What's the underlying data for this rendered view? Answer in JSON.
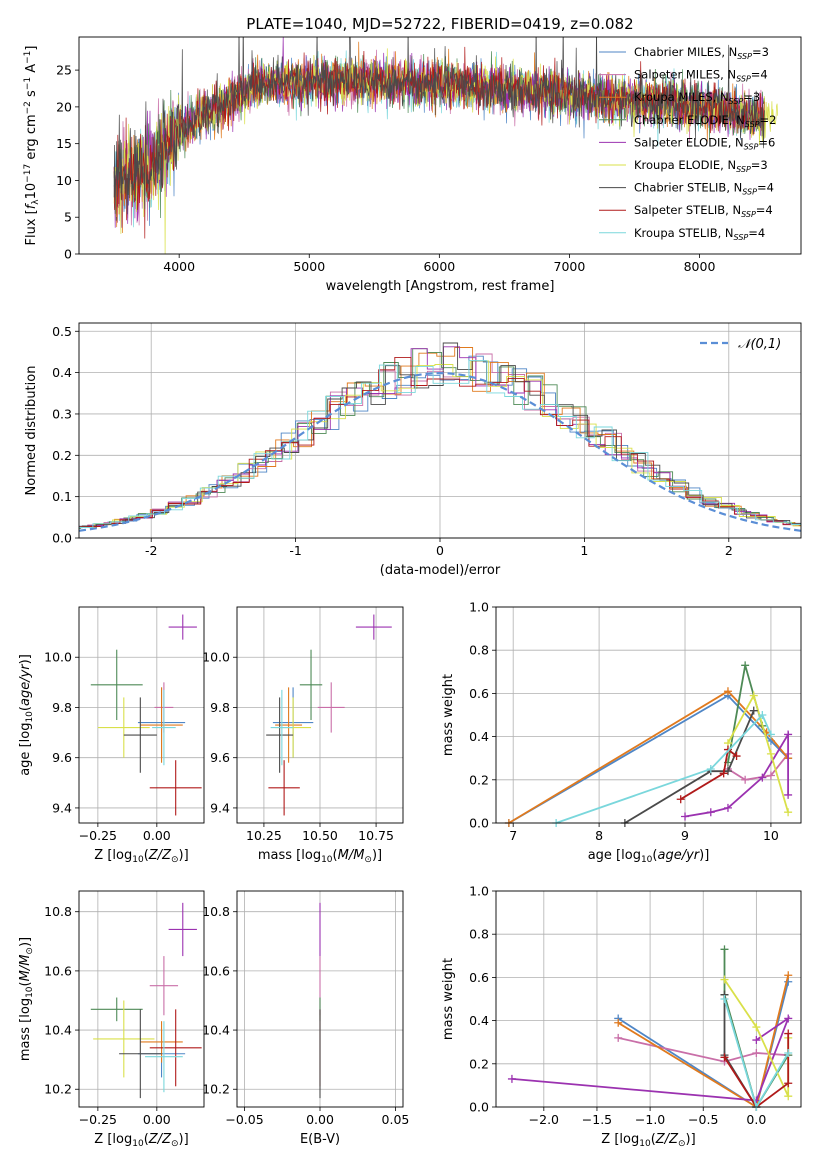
{
  "series_names": [
    "Chabrier MILES, N_SSP=3",
    "Salpeter MILES, N_SSP=4",
    "Kroupa MILES, N_SSP=3",
    "Chabrier ELODIE, N_SSP=2",
    "Salpeter ELODIE, N_SSP=6",
    "Kroupa ELODIE, N_SSP=3",
    "Chabrier STELIB, N_SSP=4",
    "Salpeter STELIB, N_SSP=4",
    "Kroupa STELIB, N_SSP=4"
  ],
  "series_colors": [
    "#4f86c6",
    "#c96fa8",
    "#e07a1e",
    "#4e8a56",
    "#9b32b0",
    "#d9e04a",
    "#4a4a4a",
    "#b01a1a",
    "#7ad7dc"
  ],
  "chart_data": [
    {
      "type": "line",
      "title": "PLATE=1040, MJD=52722, FIBERID=0419, z=0.082",
      "xlabel": "wavelength [Angstrom, rest frame]",
      "ylabel": "Flux [f_λ 10^-17 erg cm^-2 s^-1 A^-1]",
      "xlim": [
        3230,
        8780
      ],
      "ylim": [
        0,
        29.5
      ],
      "xticks": [
        4000,
        5000,
        6000,
        7000,
        8000
      ],
      "yticks": [
        0,
        5,
        10,
        15,
        20,
        25
      ],
      "legend_position": "upper-right",
      "approx_continuum": {
        "x": [
          3500,
          3800,
          4000,
          4300,
          4600,
          5000,
          5500,
          6000,
          6500,
          7000,
          7400,
          7800,
          8200,
          8500
        ],
        "y": [
          10,
          12,
          17,
          20,
          23,
          23.5,
          23.5,
          23,
          22.5,
          21.5,
          21,
          20.5,
          19.5,
          18.5
        ]
      }
    },
    {
      "type": "line",
      "xlabel": "(data-model)/error",
      "ylabel": "Normed distribution",
      "xlim": [
        -2.5,
        2.5
      ],
      "ylim": [
        0,
        0.52
      ],
      "xticks": [
        -2,
        -1,
        0,
        1,
        2
      ],
      "yticks": [
        0.0,
        0.1,
        0.2,
        0.3,
        0.4,
        0.5
      ],
      "legend": "𝒩(0,1)",
      "legend_position": "upper-right",
      "reference": "standard normal density"
    },
    {
      "type": "scatter",
      "xlabel": "Z [log10(Z/Z⊙)]",
      "ylabel": "age [log10(age/yr)]",
      "xlim": [
        -0.33,
        0.2
      ],
      "ylim": [
        9.34,
        10.2
      ],
      "xticks": [
        -0.25,
        0.0
      ],
      "yticks": [
        9.4,
        9.6,
        9.8,
        10.0
      ],
      "points": [
        {
          "series": 0,
          "x": 0.02,
          "xerr": 0.1,
          "y": 9.74,
          "yerr": 0.14
        },
        {
          "series": 1,
          "x": 0.03,
          "xerr": 0.04,
          "y": 9.8,
          "yerr": 0.1
        },
        {
          "series": 2,
          "x": 0.02,
          "xerr": 0.09,
          "y": 9.73,
          "yerr": 0.15
        },
        {
          "series": 3,
          "x": -0.17,
          "xerr": 0.11,
          "y": 9.89,
          "yerr": 0.14
        },
        {
          "series": 4,
          "x": 0.11,
          "xerr": 0.06,
          "y": 10.12,
          "yerr": 0.05
        },
        {
          "series": 5,
          "x": -0.14,
          "xerr": 0.11,
          "y": 9.72,
          "yerr": 0.12
        },
        {
          "series": 6,
          "x": -0.07,
          "xerr": 0.07,
          "y": 9.69,
          "yerr": 0.15
        },
        {
          "series": 7,
          "x": 0.08,
          "xerr": 0.11,
          "y": 9.48,
          "yerr": 0.11
        },
        {
          "series": 8,
          "x": 0.03,
          "xerr": 0.05,
          "y": 9.72,
          "yerr": 0.15
        }
      ]
    },
    {
      "type": "scatter",
      "xlabel": "mass [log10(M/M⊙)]",
      "xlim": [
        10.13,
        10.87
      ],
      "ylim": [
        9.34,
        10.2
      ],
      "xticks": [
        10.25,
        10.5,
        10.75
      ],
      "yticks": [
        9.4,
        9.6,
        9.8,
        10.0
      ],
      "points": [
        {
          "series": 0,
          "x": 10.38,
          "xerr": 0.09,
          "y": 9.74,
          "yerr": 0.14
        },
        {
          "series": 1,
          "x": 10.55,
          "xerr": 0.06,
          "y": 9.8,
          "yerr": 0.1
        },
        {
          "series": 2,
          "x": 10.36,
          "xerr": 0.06,
          "y": 9.73,
          "yerr": 0.15
        },
        {
          "series": 3,
          "x": 10.46,
          "xerr": 0.05,
          "y": 9.89,
          "yerr": 0.14
        },
        {
          "series": 4,
          "x": 10.74,
          "xerr": 0.08,
          "y": 10.12,
          "yerr": 0.05
        },
        {
          "series": 5,
          "x": 10.38,
          "xerr": 0.08,
          "y": 9.72,
          "yerr": 0.12
        },
        {
          "series": 6,
          "x": 10.32,
          "xerr": 0.06,
          "y": 9.69,
          "yerr": 0.15
        },
        {
          "series": 7,
          "x": 10.34,
          "xerr": 0.07,
          "y": 9.48,
          "yerr": 0.11
        },
        {
          "series": 8,
          "x": 10.33,
          "xerr": 0.05,
          "y": 9.72,
          "yerr": 0.15
        }
      ]
    },
    {
      "type": "line",
      "xlabel": "age [log10(age/yr)]",
      "ylabel": "mass weight",
      "xlim": [
        6.8,
        10.35
      ],
      "ylim": [
        0,
        1
      ],
      "xticks": [
        7,
        8,
        9,
        10
      ],
      "yticks": [
        0.0,
        0.2,
        0.4,
        0.6,
        0.8,
        1.0
      ],
      "series": [
        {
          "series": 0,
          "x": [
            6.95,
            9.5,
            10.0,
            10.2
          ],
          "y": [
            0.0,
            0.59,
            0.38,
            0.3
          ]
        },
        {
          "series": 1,
          "x": [
            9.5,
            9.7,
            10.0,
            10.2
          ],
          "y": [
            0.25,
            0.2,
            0.22,
            0.32
          ]
        },
        {
          "series": 2,
          "x": [
            6.95,
            9.5,
            9.95,
            10.2
          ],
          "y": [
            0.0,
            0.61,
            0.42,
            0.3
          ]
        },
        {
          "series": 3,
          "x": [
            9.5,
            9.7,
            9.9
          ],
          "y": [
            0.28,
            0.73,
            0.45
          ]
        },
        {
          "series": 4,
          "x": [
            9.0,
            9.3,
            9.5,
            9.9,
            10.2,
            10.2
          ],
          "y": [
            0.03,
            0.05,
            0.07,
            0.21,
            0.41,
            0.13
          ]
        },
        {
          "series": 5,
          "x": [
            9.5,
            9.8,
            10.0,
            10.2
          ],
          "y": [
            0.37,
            0.59,
            0.32,
            0.05
          ]
        },
        {
          "series": 6,
          "x": [
            8.3,
            9.3,
            9.5,
            9.8
          ],
          "y": [
            0.0,
            0.24,
            0.24,
            0.52
          ]
        },
        {
          "series": 7,
          "x": [
            8.95,
            9.45,
            9.5,
            9.6
          ],
          "y": [
            0.11,
            0.23,
            0.34,
            0.31
          ]
        },
        {
          "series": 8,
          "x": [
            7.5,
            9.3,
            9.9,
            10.0
          ],
          "y": [
            0.0,
            0.25,
            0.5,
            0.41
          ]
        }
      ]
    },
    {
      "type": "scatter",
      "xlabel": "Z [log10(Z/Z⊙)]",
      "ylabel": "mass [log10(M/M⊙)]",
      "xlim": [
        -0.33,
        0.2
      ],
      "ylim": [
        10.14,
        10.87
      ],
      "xticks": [
        -0.25,
        0.0
      ],
      "yticks": [
        10.2,
        10.4,
        10.6,
        10.8
      ],
      "points": [
        {
          "series": 0,
          "x": 0.02,
          "xerr": 0.1,
          "y": 10.32,
          "yerr": 0.08
        },
        {
          "series": 1,
          "x": 0.03,
          "xerr": 0.06,
          "y": 10.55,
          "yerr": 0.1
        },
        {
          "series": 2,
          "x": 0.02,
          "xerr": 0.09,
          "y": 10.36,
          "yerr": 0.07
        },
        {
          "series": 3,
          "x": -0.17,
          "xerr": 0.11,
          "y": 10.47,
          "yerr": 0.04
        },
        {
          "series": 4,
          "x": 0.11,
          "xerr": 0.06,
          "y": 10.74,
          "yerr": 0.09
        },
        {
          "series": 5,
          "x": -0.14,
          "xerr": 0.13,
          "y": 10.37,
          "yerr": 0.13
        },
        {
          "series": 6,
          "x": -0.07,
          "xerr": 0.09,
          "y": 10.32,
          "yerr": 0.15
        },
        {
          "series": 7,
          "x": 0.08,
          "xerr": 0.11,
          "y": 10.34,
          "yerr": 0.13
        },
        {
          "series": 8,
          "x": 0.03,
          "xerr": 0.08,
          "y": 10.31,
          "yerr": 0.12
        }
      ]
    },
    {
      "type": "scatter",
      "xlabel": "E(B-V)",
      "xlim": [
        -0.055,
        0.055
      ],
      "ylim": [
        10.14,
        10.87
      ],
      "xticks": [
        -0.05,
        0.0,
        0.05
      ],
      "yticks": [
        10.2,
        10.4,
        10.6,
        10.8
      ],
      "points": [
        {
          "series": 4,
          "x": 0.0,
          "y": 10.74,
          "yerr": 0.09
        },
        {
          "series": 1,
          "x": 0.0,
          "y": 10.55,
          "yerr": 0.1
        },
        {
          "series": 7,
          "x": 0.0,
          "y": 10.34,
          "yerr": 0.13
        },
        {
          "series": 3,
          "x": 0.0,
          "y": 10.47,
          "yerr": 0.04
        },
        {
          "series": 6,
          "x": 0.0,
          "y": 10.32,
          "yerr": 0.15
        }
      ]
    },
    {
      "type": "line",
      "xlabel": "Z [log10(Z/Z⊙)]",
      "ylabel": "mass weight",
      "xlim": [
        -2.45,
        0.42
      ],
      "ylim": [
        0,
        1
      ],
      "xticks": [
        -2.0,
        -1.5,
        -1.0,
        -0.5,
        0.0
      ],
      "yticks": [
        0.0,
        0.2,
        0.4,
        0.6,
        0.8,
        1.0
      ],
      "series": [
        {
          "series": 0,
          "x": [
            -1.3,
            0.0,
            0.3
          ],
          "y": [
            0.41,
            0.0,
            0.58
          ]
        },
        {
          "series": 1,
          "x": [
            -1.3,
            -0.3,
            0.0,
            0.3
          ],
          "y": [
            0.32,
            0.21,
            0.25,
            0.24
          ]
        },
        {
          "series": 2,
          "x": [
            -1.3,
            0.0,
            0.3
          ],
          "y": [
            0.39,
            0.0,
            0.61
          ]
        },
        {
          "series": 3,
          "x": [
            -0.3,
            -0.3,
            0.0,
            0.3
          ],
          "y": [
            0.73,
            0.52,
            0.0,
            0.24
          ]
        },
        {
          "series": 4,
          "x": [
            -2.3,
            0.0,
            0.3,
            0.0
          ],
          "y": [
            0.13,
            0.03,
            0.41,
            0.31
          ]
        },
        {
          "series": 5,
          "x": [
            -0.3,
            0.0,
            0.3,
            0.3
          ],
          "y": [
            0.59,
            0.37,
            0.05,
            0.32
          ]
        },
        {
          "series": 6,
          "x": [
            -0.3,
            -0.3,
            0.0
          ],
          "y": [
            0.52,
            0.24,
            0.0
          ]
        },
        {
          "series": 7,
          "x": [
            -0.3,
            0.0,
            0.3,
            0.3
          ],
          "y": [
            0.23,
            0.0,
            0.11,
            0.34
          ]
        },
        {
          "series": 8,
          "x": [
            -0.3,
            0.0,
            0.3
          ],
          "y": [
            0.5,
            0.0,
            0.25
          ]
        }
      ]
    }
  ]
}
